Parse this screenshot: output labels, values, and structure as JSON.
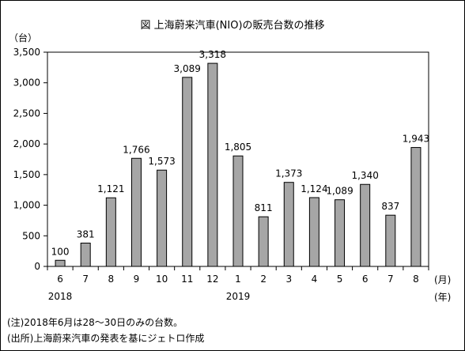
{
  "chart_data": {
    "type": "bar",
    "title": "図  上海蔚来汽車(NIO)の販売台数の推移",
    "y_unit": "（台）",
    "x_unit_month": "(月)",
    "x_unit_year": "(年)",
    "categories": [
      "6",
      "7",
      "8",
      "9",
      "10",
      "11",
      "12",
      "1",
      "2",
      "3",
      "4",
      "5",
      "6",
      "7",
      "8"
    ],
    "year_labels": [
      {
        "index": 0,
        "label": "2018"
      },
      {
        "index": 7,
        "label": "2019"
      }
    ],
    "values": [
      100,
      381,
      1121,
      1766,
      1573,
      3089,
      3318,
      1805,
      811,
      1373,
      1124,
      1089,
      1340,
      837,
      1943
    ],
    "value_labels": [
      "100",
      "381",
      "1,121",
      "1,766",
      "1,573",
      "3,089",
      "3,318",
      "1,805",
      "811",
      "1,373",
      "1,124",
      "1,089",
      "1,340",
      "837",
      "1,943"
    ],
    "yticks": [
      0,
      500,
      1000,
      1500,
      2000,
      2500,
      3000,
      3500
    ],
    "ytick_labels": [
      "0",
      "500",
      "1,000",
      "1,500",
      "2,000",
      "2,500",
      "3,000",
      "3,500"
    ],
    "ylim": [
      0,
      3500
    ],
    "grid": false,
    "bar_color": "#a6a6a6"
  },
  "notes": {
    "note1": "(注)2018年6月は28～30日のみの台数。",
    "note2": "(出所)上海蔚来汽車の発表を基にジェトロ作成"
  }
}
